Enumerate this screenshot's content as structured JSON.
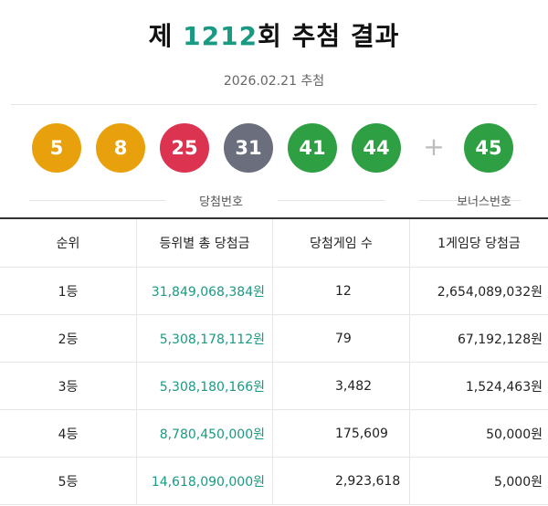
{
  "header": {
    "title_prefix": "제 ",
    "round": "1212",
    "title_suffix": "회 추첨 결과",
    "date": "2026.02.21 추첨"
  },
  "numbers": {
    "main": [
      "5",
      "8",
      "25",
      "31",
      "41",
      "44"
    ],
    "bonus": "45",
    "plus_symbol": "+",
    "main_caption": "당첨번호",
    "bonus_caption": "보너스번호"
  },
  "ball_colors": {
    "yellow": "#e8a10c",
    "red": "#dc3450",
    "gray": "#6b6e7d",
    "green": "#2ea043"
  },
  "accent_color": "#1a9a82",
  "table": {
    "headers": [
      "순위",
      "등위별 총 당첨금",
      "당첨게임 수",
      "1게임당 당첨금"
    ],
    "rows": [
      {
        "rank": "1등",
        "total": "31,849,068,384원",
        "winners": "12",
        "per_game": "2,654,089,032원"
      },
      {
        "rank": "2등",
        "total": "5,308,178,112원",
        "winners": "79",
        "per_game": "67,192,128원"
      },
      {
        "rank": "3등",
        "total": "5,308,180,166원",
        "winners": "3,482",
        "per_game": "1,524,463원"
      },
      {
        "rank": "4등",
        "total": "8,780,450,000원",
        "winners": "175,609",
        "per_game": "50,000원"
      },
      {
        "rank": "5등",
        "total": "14,618,090,000원",
        "winners": "2,923,618",
        "per_game": "5,000원"
      }
    ]
  }
}
